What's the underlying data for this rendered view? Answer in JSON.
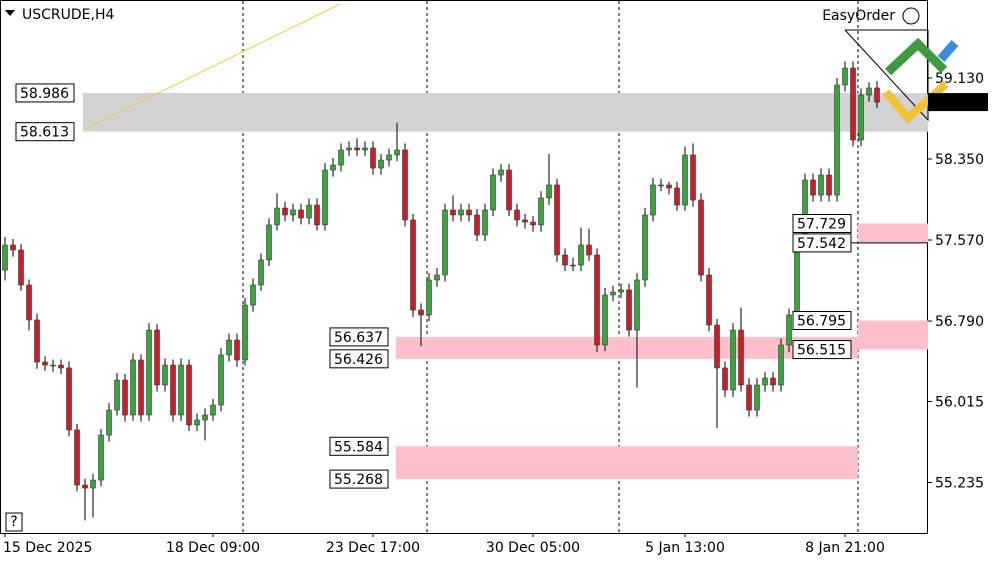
{
  "chart_data": {
    "type": "candlestick",
    "title": "USCRUDE,H4",
    "tool": "EasyOrder",
    "help": "?",
    "categories": [
      "15 Dec 2025",
      null,
      null,
      null,
      null,
      null,
      null,
      null,
      null,
      null,
      null,
      null,
      null,
      null,
      null,
      null,
      null,
      null,
      null,
      null,
      null,
      null,
      null,
      null,
      null,
      null,
      "18 Dec 09:00",
      null,
      null,
      null,
      null,
      null,
      null,
      null,
      null,
      null,
      null,
      null,
      null,
      null,
      null,
      null,
      null,
      null,
      null,
      null,
      "23 Dec 17:00",
      null,
      null,
      null,
      null,
      null,
      null,
      null,
      null,
      null,
      null,
      null,
      null,
      null,
      null,
      null,
      null,
      null,
      null,
      null,
      "30 Dec 05:00",
      null,
      null,
      null,
      null,
      null,
      null,
      null,
      null,
      null,
      null,
      null,
      null,
      null,
      null,
      null,
      null,
      null,
      null,
      "5 Jan 13:00",
      null,
      null,
      null,
      null,
      null,
      null,
      null,
      null,
      null,
      null,
      null,
      null,
      null,
      null,
      null,
      null,
      null,
      null,
      null,
      "8 Jan 21:00",
      null,
      null,
      null,
      null
    ],
    "open": [
      57.28,
      57.522,
      57.474,
      57.137,
      56.8,
      56.395,
      56.366,
      56.366,
      56.338,
      55.741,
      55.211,
      55.182,
      55.259,
      55.692,
      55.933,
      56.222,
      55.885,
      56.415,
      55.885,
      56.703,
      56.174,
      56.366,
      55.885,
      56.366,
      55.789,
      55.837,
      55.885,
      55.981,
      56.463,
      56.607,
      56.415,
      56.944,
      57.137,
      57.378,
      57.715,
      57.878,
      57.811,
      57.859,
      57.782,
      57.907,
      57.715,
      58.244,
      58.292,
      58.437,
      58.456,
      58.437,
      58.456,
      58.263,
      58.34,
      58.389,
      58.437,
      57.763,
      56.896,
      56.848,
      57.185,
      57.233,
      57.859,
      57.811,
      57.859,
      57.811,
      57.618,
      57.859,
      58.196,
      58.244,
      57.859,
      57.763,
      57.743,
      57.715,
      57.975,
      58.1,
      57.426,
      57.329,
      57.329,
      57.522,
      57.426,
      56.559,
      57.041,
      57.069,
      57.089,
      56.703,
      57.185,
      57.811,
      58.1,
      58.1,
      58.071,
      57.907,
      58.389,
      57.955,
      57.233,
      56.752,
      56.338,
      56.126,
      56.703,
      56.174,
      55.933,
      56.174,
      56.241,
      56.174,
      56.559,
      56.848,
      57.522,
      58.148,
      58.003,
      58.196,
      58.003,
      59.063,
      59.226,
      58.533,
      58.966,
      59.034
    ],
    "high": [
      57.6,
      57.58,
      57.53,
      57.19,
      56.86,
      56.45,
      56.42,
      56.42,
      56.4,
      55.8,
      55.27,
      55.32,
      55.75,
      56.0,
      56.29,
      56.28,
      56.48,
      56.47,
      56.77,
      56.76,
      56.43,
      56.42,
      56.43,
      56.42,
      55.9,
      55.95,
      56.04,
      56.53,
      56.67,
      56.67,
      57.01,
      57.2,
      57.44,
      57.78,
      58.02,
      57.94,
      57.92,
      57.92,
      57.97,
      57.97,
      58.31,
      58.36,
      58.5,
      58.52,
      58.55,
      58.52,
      58.52,
      58.4,
      58.45,
      58.7,
      58.5,
      57.82,
      56.96,
      57.25,
      57.3,
      57.92,
      58.0,
      57.92,
      57.92,
      57.87,
      57.92,
      58.26,
      58.3,
      58.3,
      57.92,
      57.82,
      57.8,
      58.04,
      58.4,
      58.16,
      57.49,
      57.4,
      57.69,
      57.68,
      57.49,
      57.11,
      57.13,
      57.15,
      57.15,
      57.25,
      57.88,
      58.17,
      58.16,
      58.13,
      58.13,
      58.47,
      58.5,
      58.02,
      57.3,
      56.81,
      56.4,
      56.77,
      56.92,
      56.24,
      56.24,
      56.3,
      56.3,
      56.62,
      56.91,
      57.59,
      58.21,
      58.21,
      58.26,
      58.26,
      59.13,
      59.29,
      59.29,
      59.03,
      59.09,
      59.1
    ],
    "low": [
      57.18,
      57.41,
      57.08,
      56.7,
      56.33,
      56.31,
      56.3,
      56.28,
      55.68,
      55.15,
      54.87,
      54.9,
      55.2,
      55.63,
      55.88,
      55.82,
      55.83,
      55.82,
      55.83,
      56.11,
      56.11,
      55.82,
      55.83,
      55.73,
      55.73,
      55.64,
      55.83,
      55.92,
      56.4,
      56.35,
      56.36,
      56.88,
      57.08,
      57.32,
      57.66,
      57.75,
      57.75,
      57.72,
      57.72,
      57.66,
      57.66,
      58.18,
      58.23,
      58.38,
      58.38,
      58.38,
      58.2,
      58.2,
      58.28,
      58.33,
      57.7,
      56.83,
      56.55,
      56.79,
      57.12,
      57.17,
      57.75,
      57.75,
      57.75,
      57.56,
      57.56,
      57.8,
      58.13,
      57.8,
      57.7,
      57.68,
      57.65,
      57.65,
      57.91,
      57.36,
      57.27,
      57.27,
      57.27,
      57.37,
      56.49,
      56.5,
      56.98,
      57.01,
      56.64,
      56.15,
      57.12,
      57.75,
      58.04,
      58.01,
      57.85,
      57.85,
      57.89,
      57.17,
      56.69,
      55.76,
      56.06,
      56.06,
      56.11,
      55.87,
      55.87,
      56.11,
      56.11,
      56.11,
      56.49,
      56.79,
      57.46,
      57.94,
      57.94,
      57.94,
      57.94,
      59.0,
      58.47,
      58.47,
      58.9,
      58.84
    ],
    "close": [
      57.522,
      57.474,
      57.137,
      56.8,
      56.395,
      56.366,
      56.366,
      56.338,
      55.741,
      55.211,
      55.182,
      55.259,
      55.692,
      55.933,
      56.222,
      55.885,
      56.415,
      55.885,
      56.703,
      56.174,
      56.366,
      55.885,
      56.366,
      55.789,
      55.837,
      55.885,
      55.981,
      56.463,
      56.607,
      56.415,
      56.944,
      57.137,
      57.378,
      57.715,
      57.878,
      57.811,
      57.859,
      57.782,
      57.907,
      57.715,
      58.244,
      58.292,
      58.437,
      58.456,
      58.437,
      58.456,
      58.263,
      58.34,
      58.389,
      58.437,
      57.763,
      56.896,
      56.848,
      57.185,
      57.233,
      57.859,
      57.811,
      57.859,
      57.811,
      57.618,
      57.859,
      58.196,
      58.244,
      57.859,
      57.763,
      57.743,
      57.715,
      57.975,
      58.1,
      57.426,
      57.329,
      57.329,
      57.522,
      57.426,
      56.559,
      57.041,
      57.069,
      57.089,
      56.703,
      57.185,
      57.811,
      58.1,
      58.1,
      58.071,
      57.907,
      58.389,
      57.955,
      57.233,
      56.752,
      56.338,
      56.126,
      56.703,
      56.174,
      55.933,
      56.174,
      56.241,
      56.174,
      56.559,
      56.848,
      57.522,
      58.148,
      58.003,
      58.196,
      58.003,
      59.063,
      59.226,
      58.533,
      58.966,
      59.034,
      58.898
    ],
    "bull_color": "#3aa33a",
    "bear_color": "#c8202a",
    "current_price": 58.898,
    "zones": [
      {
        "top": 58.986,
        "bottom": 58.613,
        "color": "#d3d3d3"
      },
      {
        "top": 56.637,
        "bottom": 56.426,
        "color": "#ffc0cb"
      },
      {
        "top": 55.584,
        "bottom": 55.268,
        "color": "#ffc0cb"
      },
      {
        "top": 57.729,
        "bottom": 57.542,
        "color": "#ffc0cb"
      },
      {
        "top": 56.795,
        "bottom": 56.515,
        "color": "#ffc0cb"
      }
    ],
    "ylim": [
      54.749,
      59.881
    ],
    "yticks": [
      {
        "value": 59.13,
        "label": "59.130"
      },
      {
        "value": 58.35,
        "label": "58.350"
      },
      {
        "value": 57.57,
        "label": "57.570"
      },
      {
        "value": 56.79,
        "label": "56.790"
      },
      56.015,
      55.235
    ]
  }
}
